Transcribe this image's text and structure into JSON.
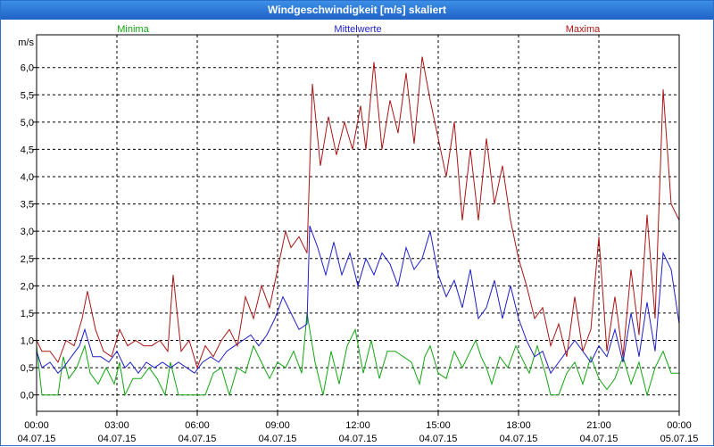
{
  "chart_data": {
    "type": "line",
    "title": "Windgeschwindigkeit [m/s] skaliert",
    "ylabel": "m/s",
    "ylim": [
      -0.3,
      6.6
    ],
    "yticks": [
      0.0,
      0.5,
      1.0,
      1.5,
      2.0,
      2.5,
      3.0,
      3.5,
      4.0,
      4.5,
      5.0,
      5.5,
      6.0
    ],
    "ytick_labels": [
      "0,0",
      "0,5",
      "1,0",
      "1,5",
      "2,0",
      "2,5",
      "3,0",
      "3,5",
      "4,0",
      "4,5",
      "5,0",
      "5,5",
      "6,0"
    ],
    "x_range_hours": [
      0,
      24
    ],
    "xticks": [
      {
        "hour": 0,
        "time": "00:00",
        "date": "04.07.15"
      },
      {
        "hour": 3,
        "time": "03:00",
        "date": "04.07.15"
      },
      {
        "hour": 6,
        "time": "06:00",
        "date": "04.07.15"
      },
      {
        "hour": 9,
        "time": "09:00",
        "date": "04.07.15"
      },
      {
        "hour": 12,
        "time": "12:00",
        "date": "04.07.15"
      },
      {
        "hour": 15,
        "time": "15:00",
        "date": "04.07.15"
      },
      {
        "hour": 18,
        "time": "18:00",
        "date": "04.07.15"
      },
      {
        "hour": 21,
        "time": "21:00",
        "date": "04.07.15"
      },
      {
        "hour": 24,
        "time": "00:00",
        "date": "05.07.15"
      }
    ],
    "grid": true,
    "series": [
      {
        "name": "Minima",
        "color": "#12a512",
        "points": [
          [
            0,
            0.9
          ],
          [
            0.2,
            0.0
          ],
          [
            0.5,
            0.0
          ],
          [
            0.8,
            0.0
          ],
          [
            1.0,
            0.7
          ],
          [
            1.2,
            0.3
          ],
          [
            1.5,
            0.5
          ],
          [
            1.8,
            0.9
          ],
          [
            2.0,
            0.4
          ],
          [
            2.3,
            0.2
          ],
          [
            2.6,
            0.5
          ],
          [
            2.9,
            0.2
          ],
          [
            3.1,
            0.6
          ],
          [
            3.3,
            0.0
          ],
          [
            3.6,
            0.3
          ],
          [
            3.9,
            0.3
          ],
          [
            4.2,
            0.5
          ],
          [
            4.5,
            0.3
          ],
          [
            4.8,
            0.0
          ],
          [
            5.0,
            0.6
          ],
          [
            5.3,
            0.0
          ],
          [
            5.7,
            0.0
          ],
          [
            6.0,
            0.0
          ],
          [
            6.3,
            0.0
          ],
          [
            6.6,
            0.4
          ],
          [
            6.9,
            0.5
          ],
          [
            7.2,
            0.0
          ],
          [
            7.5,
            0.5
          ],
          [
            7.8,
            0.4
          ],
          [
            8.1,
            0.9
          ],
          [
            8.4,
            0.6
          ],
          [
            8.7,
            0.3
          ],
          [
            9.0,
            0.6
          ],
          [
            9.3,
            0.5
          ],
          [
            9.6,
            0.8
          ],
          [
            9.9,
            0.4
          ],
          [
            10.1,
            1.5
          ],
          [
            10.4,
            0.6
          ],
          [
            10.7,
            0.0
          ],
          [
            11.0,
            0.8
          ],
          [
            11.3,
            0.2
          ],
          [
            11.6,
            0.9
          ],
          [
            11.9,
            1.2
          ],
          [
            12.2,
            0.4
          ],
          [
            12.5,
            1.0
          ],
          [
            12.8,
            0.3
          ],
          [
            13.1,
            0.8
          ],
          [
            13.4,
            0.8
          ],
          [
            13.7,
            0.7
          ],
          [
            14.0,
            0.6
          ],
          [
            14.3,
            0.2
          ],
          [
            14.5,
            0.7
          ],
          [
            14.7,
            0.9
          ],
          [
            15.0,
            0.4
          ],
          [
            15.3,
            0.3
          ],
          [
            15.6,
            0.8
          ],
          [
            15.9,
            0.5
          ],
          [
            16.2,
            0.8
          ],
          [
            16.4,
            1.0
          ],
          [
            16.6,
            0.7
          ],
          [
            16.8,
            0.5
          ],
          [
            17.0,
            0.2
          ],
          [
            17.3,
            0.7
          ],
          [
            17.6,
            0.5
          ],
          [
            17.9,
            0.9
          ],
          [
            18.1,
            0.7
          ],
          [
            18.4,
            0.4
          ],
          [
            18.7,
            0.9
          ],
          [
            19.0,
            0.4
          ],
          [
            19.2,
            0.0
          ],
          [
            19.5,
            0.0
          ],
          [
            19.8,
            0.4
          ],
          [
            20.1,
            0.6
          ],
          [
            20.4,
            0.2
          ],
          [
            20.7,
            0.7
          ],
          [
            21.0,
            0.3
          ],
          [
            21.3,
            0.1
          ],
          [
            21.6,
            0.3
          ],
          [
            21.9,
            0.7
          ],
          [
            22.2,
            0.2
          ],
          [
            22.5,
            0.6
          ],
          [
            22.8,
            0.0
          ],
          [
            23.1,
            0.5
          ],
          [
            23.4,
            0.8
          ],
          [
            23.7,
            0.4
          ],
          [
            24.0,
            0.4
          ]
        ]
      },
      {
        "name": "Mittelwerte",
        "color": "#1e1ec8",
        "points": [
          [
            0,
            0.8
          ],
          [
            0.2,
            0.5
          ],
          [
            0.5,
            0.6
          ],
          [
            0.8,
            0.4
          ],
          [
            1.0,
            0.5
          ],
          [
            1.3,
            0.7
          ],
          [
            1.6,
            0.9
          ],
          [
            1.8,
            1.2
          ],
          [
            2.1,
            0.7
          ],
          [
            2.4,
            0.7
          ],
          [
            2.7,
            0.6
          ],
          [
            3.0,
            0.8
          ],
          [
            3.3,
            0.5
          ],
          [
            3.5,
            0.6
          ],
          [
            3.8,
            0.4
          ],
          [
            4.1,
            0.6
          ],
          [
            4.4,
            0.5
          ],
          [
            4.7,
            0.6
          ],
          [
            5.0,
            0.5
          ],
          [
            5.3,
            0.6
          ],
          [
            5.6,
            0.5
          ],
          [
            5.9,
            0.4
          ],
          [
            6.2,
            0.6
          ],
          [
            6.5,
            0.7
          ],
          [
            6.8,
            0.6
          ],
          [
            7.1,
            0.8
          ],
          [
            7.4,
            0.9
          ],
          [
            7.7,
            1.0
          ],
          [
            8.0,
            1.1
          ],
          [
            8.3,
            0.9
          ],
          [
            8.6,
            1.1
          ],
          [
            8.9,
            1.4
          ],
          [
            9.2,
            1.8
          ],
          [
            9.5,
            1.5
          ],
          [
            9.8,
            1.2
          ],
          [
            10.1,
            1.3
          ],
          [
            10.2,
            3.1
          ],
          [
            10.5,
            2.7
          ],
          [
            10.8,
            2.2
          ],
          [
            11.1,
            2.8
          ],
          [
            11.4,
            2.2
          ],
          [
            11.7,
            2.6
          ],
          [
            12.0,
            2.0
          ],
          [
            12.3,
            2.5
          ],
          [
            12.6,
            2.2
          ],
          [
            12.9,
            2.6
          ],
          [
            13.2,
            2.4
          ],
          [
            13.5,
            2.0
          ],
          [
            13.8,
            2.7
          ],
          [
            14.1,
            2.3
          ],
          [
            14.4,
            2.5
          ],
          [
            14.7,
            3.0
          ],
          [
            15.0,
            2.2
          ],
          [
            15.3,
            1.8
          ],
          [
            15.6,
            2.1
          ],
          [
            15.9,
            1.6
          ],
          [
            16.2,
            2.3
          ],
          [
            16.5,
            1.4
          ],
          [
            16.8,
            1.6
          ],
          [
            17.1,
            2.1
          ],
          [
            17.4,
            1.4
          ],
          [
            17.7,
            2.0
          ],
          [
            18.0,
            1.4
          ],
          [
            18.3,
            1.0
          ],
          [
            18.6,
            0.7
          ],
          [
            18.9,
            0.8
          ],
          [
            19.2,
            0.4
          ],
          [
            19.5,
            0.6
          ],
          [
            19.8,
            0.8
          ],
          [
            20.1,
            1.0
          ],
          [
            20.4,
            0.8
          ],
          [
            20.7,
            0.6
          ],
          [
            21.0,
            0.9
          ],
          [
            21.3,
            0.7
          ],
          [
            21.6,
            1.2
          ],
          [
            21.9,
            0.6
          ],
          [
            22.2,
            1.5
          ],
          [
            22.5,
            0.7
          ],
          [
            22.8,
            1.7
          ],
          [
            23.1,
            0.8
          ],
          [
            23.4,
            2.6
          ],
          [
            23.7,
            2.3
          ],
          [
            24.0,
            1.3
          ]
        ]
      },
      {
        "name": "Maxima",
        "color": "#aa1414",
        "points": [
          [
            0,
            1.0
          ],
          [
            0.2,
            0.8
          ],
          [
            0.5,
            0.8
          ],
          [
            0.8,
            0.6
          ],
          [
            1.1,
            1.0
          ],
          [
            1.4,
            0.9
          ],
          [
            1.7,
            1.4
          ],
          [
            1.9,
            1.9
          ],
          [
            2.2,
            1.2
          ],
          [
            2.5,
            0.8
          ],
          [
            2.8,
            0.7
          ],
          [
            3.1,
            1.2
          ],
          [
            3.4,
            0.9
          ],
          [
            3.7,
            1.0
          ],
          [
            4.0,
            0.9
          ],
          [
            4.3,
            0.9
          ],
          [
            4.6,
            1.0
          ],
          [
            4.9,
            0.8
          ],
          [
            5.1,
            2.2
          ],
          [
            5.4,
            0.8
          ],
          [
            5.7,
            1.0
          ],
          [
            6.0,
            0.5
          ],
          [
            6.3,
            0.9
          ],
          [
            6.6,
            0.7
          ],
          [
            6.9,
            1.0
          ],
          [
            7.2,
            1.2
          ],
          [
            7.5,
            0.9
          ],
          [
            7.8,
            1.8
          ],
          [
            8.1,
            1.4
          ],
          [
            8.4,
            2.0
          ],
          [
            8.7,
            1.6
          ],
          [
            9.0,
            2.3
          ],
          [
            9.3,
            3.0
          ],
          [
            9.5,
            2.7
          ],
          [
            9.8,
            2.9
          ],
          [
            10.1,
            2.6
          ],
          [
            10.3,
            5.7
          ],
          [
            10.6,
            4.2
          ],
          [
            10.9,
            5.1
          ],
          [
            11.2,
            4.4
          ],
          [
            11.5,
            5.0
          ],
          [
            11.8,
            4.5
          ],
          [
            12.1,
            5.3
          ],
          [
            12.3,
            4.5
          ],
          [
            12.6,
            6.1
          ],
          [
            12.9,
            4.5
          ],
          [
            13.2,
            5.4
          ],
          [
            13.5,
            4.8
          ],
          [
            13.8,
            5.9
          ],
          [
            14.1,
            4.6
          ],
          [
            14.4,
            6.2
          ],
          [
            14.7,
            5.4
          ],
          [
            15.0,
            4.7
          ],
          [
            15.3,
            4.0
          ],
          [
            15.6,
            5.0
          ],
          [
            15.9,
            3.2
          ],
          [
            16.2,
            4.5
          ],
          [
            16.5,
            3.2
          ],
          [
            16.8,
            4.7
          ],
          [
            17.1,
            3.5
          ],
          [
            17.4,
            4.2
          ],
          [
            17.7,
            3.2
          ],
          [
            18.0,
            2.5
          ],
          [
            18.3,
            2.0
          ],
          [
            18.6,
            1.4
          ],
          [
            18.9,
            1.6
          ],
          [
            19.2,
            0.9
          ],
          [
            19.5,
            1.3
          ],
          [
            19.8,
            0.7
          ],
          [
            20.1,
            1.8
          ],
          [
            20.4,
            0.8
          ],
          [
            20.7,
            1.2
          ],
          [
            21.0,
            2.9
          ],
          [
            21.3,
            0.8
          ],
          [
            21.6,
            1.8
          ],
          [
            21.9,
            0.7
          ],
          [
            22.2,
            2.3
          ],
          [
            22.5,
            1.1
          ],
          [
            22.8,
            3.3
          ],
          [
            23.1,
            1.4
          ],
          [
            23.4,
            5.6
          ],
          [
            23.7,
            3.5
          ],
          [
            24.0,
            3.2
          ]
        ]
      }
    ]
  }
}
